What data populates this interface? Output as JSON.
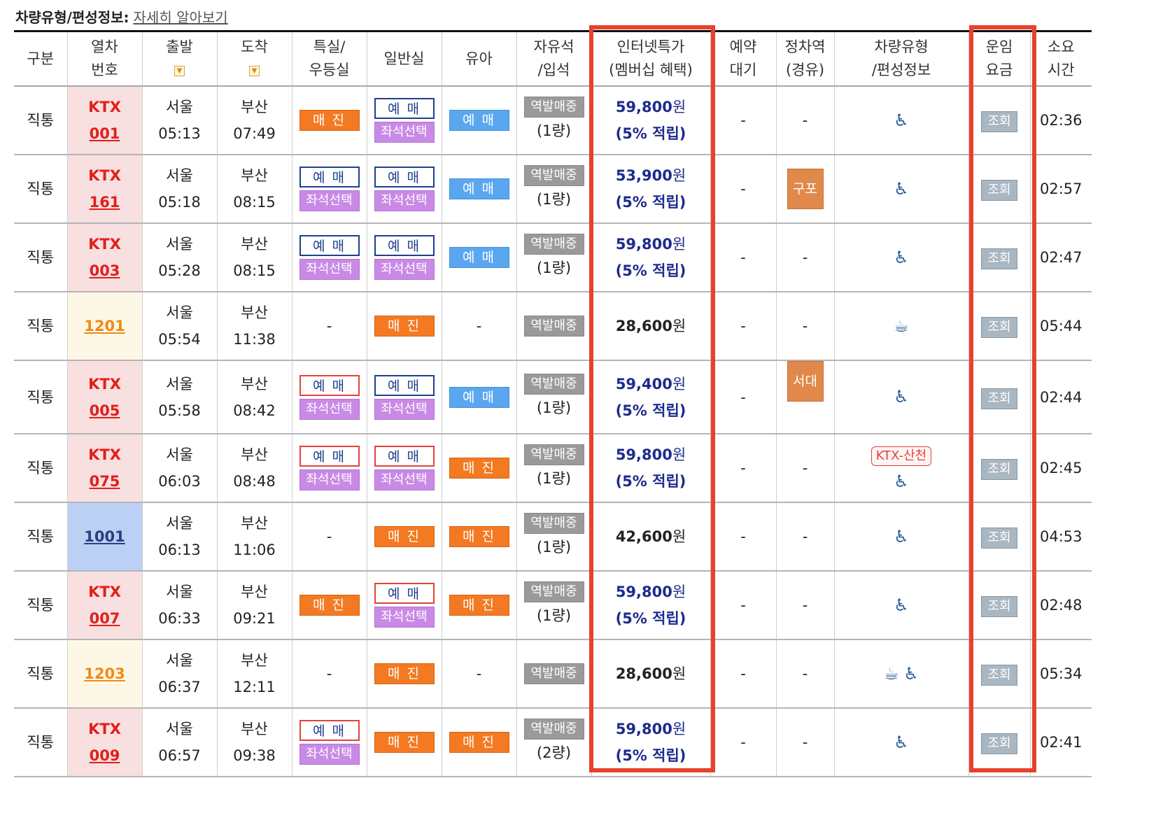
{
  "info_label": "차량유형/편성정보:",
  "info_link": "자세히 알아보기",
  "headers": {
    "type": "구분",
    "train_no": [
      "열차",
      "번호"
    ],
    "departure": "출발",
    "arrival": "도착",
    "first_class": [
      "특실/",
      "우등실"
    ],
    "standard": "일반실",
    "infant": "유아",
    "free_seat": [
      "자유석",
      "/입석"
    ],
    "internet_price": [
      "인터넷특가",
      "(멤버십 혜택)"
    ],
    "reservation_wait": [
      "예약",
      "대기"
    ],
    "stops": [
      "정차역",
      "(경유)"
    ],
    "car_type": [
      "차량유형",
      "/편성정보"
    ],
    "fare": [
      "운임",
      "요금"
    ],
    "duration": [
      "소요",
      "시간"
    ]
  },
  "labels": {
    "book": "예 매",
    "sold_out": "매 진",
    "seat_select": "좌석선택",
    "station_sale": "역발매중",
    "view": "조회",
    "dash": "-"
  },
  "rows": [
    {
      "type": "직통",
      "train_type": "KTX",
      "train_num": "001",
      "cls": "ktx",
      "dep_st": "서울",
      "dep": "05:13",
      "arr_st": "부산",
      "arr": "07:49",
      "first": "sold",
      "standard": "book_seat_navy",
      "infant": "book_blue",
      "free": "(1량)",
      "price": "59,800",
      "won": "원",
      "points": "(5% 적립)",
      "stop": "",
      "car": "car",
      "fare": "조회",
      "dur": "02:36"
    },
    {
      "type": "직통",
      "train_type": "KTX",
      "train_num": "161",
      "cls": "ktx",
      "dep_st": "서울",
      "dep": "05:18",
      "arr_st": "부산",
      "arr": "08:15",
      "first": "book_seat_navy",
      "standard": "book_seat_navy",
      "infant": "book_blue",
      "free": "(1량)",
      "price": "53,900",
      "won": "원",
      "points": "(5% 적립)",
      "stop": "구포",
      "car": "car",
      "fare": "조회",
      "dur": "02:57"
    },
    {
      "type": "직통",
      "train_type": "KTX",
      "train_num": "003",
      "cls": "ktx",
      "dep_st": "서울",
      "dep": "05:28",
      "arr_st": "부산",
      "arr": "08:15",
      "first": "book_seat_navy",
      "standard": "book_seat_navy",
      "infant": "book_blue",
      "free": "(1량)",
      "price": "59,800",
      "won": "원",
      "points": "(5% 적립)",
      "stop": "",
      "car": "car",
      "fare": "조회",
      "dur": "02:47"
    },
    {
      "type": "직통",
      "train_type": "",
      "train_num": "1201",
      "cls": "mug",
      "dep_st": "서울",
      "dep": "05:54",
      "arr_st": "부산",
      "arr": "11:38",
      "first": "dash",
      "standard": "sold",
      "infant": "dash",
      "free": "",
      "price": "28,600",
      "won": "원",
      "points": "",
      "stop": "",
      "car": "cafe",
      "fare": "조회",
      "dur": "05:44"
    },
    {
      "type": "직통",
      "train_type": "KTX",
      "train_num": "005",
      "cls": "ktx",
      "dep_st": "서울",
      "dep": "05:58",
      "arr_st": "부산",
      "arr": "08:42",
      "first": "book_seat_red",
      "standard": "book_seat_navy",
      "infant": "book_blue",
      "free": "(1량)",
      "price": "59,400",
      "won": "원",
      "points": "(5% 적립)",
      "stop": "서대구",
      "car": "car",
      "fare": "조회",
      "dur": "02:44"
    },
    {
      "type": "직통",
      "train_type": "KTX",
      "train_num": "075",
      "cls": "ktx",
      "dep_st": "서울",
      "dep": "06:03",
      "arr_st": "부산",
      "arr": "08:48",
      "first": "book_seat_red",
      "standard": "book_seat_red",
      "infant": "sold",
      "free": "(1량)",
      "price": "59,800",
      "won": "원",
      "points": "(5% 적립)",
      "stop": "",
      "car": "sancheon",
      "car_badge": "KTX-산천",
      "fare": "조회",
      "dur": "02:45"
    },
    {
      "type": "직통",
      "train_type": "",
      "train_num": "1001",
      "cls": "itx",
      "dep_st": "서울",
      "dep": "06:13",
      "arr_st": "부산",
      "arr": "11:06",
      "first": "dash",
      "standard": "sold",
      "infant": "sold",
      "free": "(1량)",
      "price": "42,600",
      "won": "원",
      "points": "",
      "stop": "",
      "car": "car",
      "fare": "조회",
      "dur": "04:53"
    },
    {
      "type": "직통",
      "train_type": "KTX",
      "train_num": "007",
      "cls": "ktx",
      "dep_st": "서울",
      "dep": "06:33",
      "arr_st": "부산",
      "arr": "09:21",
      "first": "sold",
      "standard": "book_seat_red",
      "infant": "sold",
      "free": "(1량)",
      "price": "59,800",
      "won": "원",
      "points": "(5% 적립)",
      "stop": "",
      "car": "car",
      "fare": "조회",
      "dur": "02:48"
    },
    {
      "type": "직통",
      "train_type": "",
      "train_num": "1203",
      "cls": "mug",
      "dep_st": "서울",
      "dep": "06:37",
      "arr_st": "부산",
      "arr": "12:11",
      "first": "dash",
      "standard": "sold",
      "infant": "dash",
      "free": "",
      "price": "28,600",
      "won": "원",
      "points": "",
      "stop": "",
      "car": "cafe_car",
      "fare": "조회",
      "dur": "05:34"
    },
    {
      "type": "직통",
      "train_type": "KTX",
      "train_num": "009",
      "cls": "ktx",
      "dep_st": "서울",
      "dep": "06:57",
      "arr_st": "부산",
      "arr": "09:38",
      "first": "book_seat_red",
      "standard": "sold",
      "infant": "sold",
      "free": "(2량)",
      "price": "59,800",
      "won": "원",
      "points": "(5% 적립)",
      "stop": "",
      "car": "car",
      "fare": "조회",
      "dur": "02:41"
    }
  ],
  "highlight_color": "#e8412c"
}
